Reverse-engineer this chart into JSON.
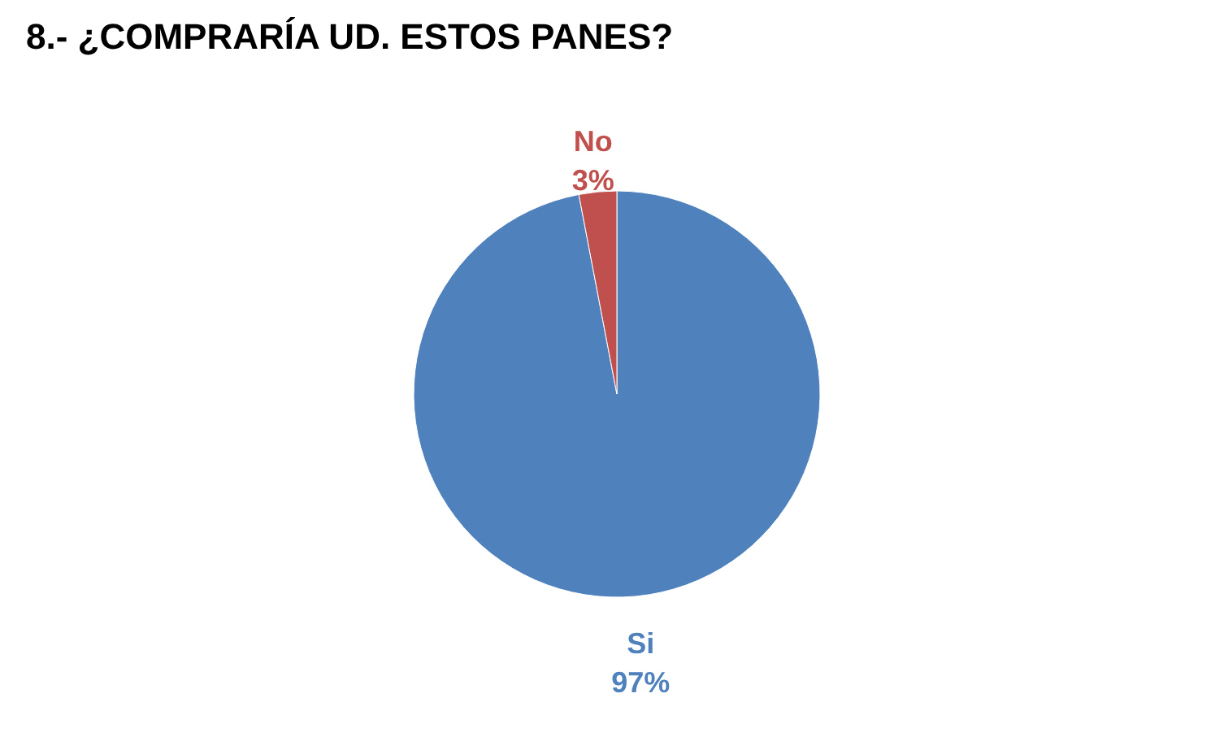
{
  "chart_data": {
    "type": "pie",
    "title": "8.- ¿COMPRARÍA UD. ESTOS PANES?",
    "categories": [
      "Si",
      "No"
    ],
    "values": [
      97,
      3
    ],
    "colors": [
      "#4f81bd",
      "#c0504d"
    ],
    "value_labels": [
      "97%",
      "3%"
    ],
    "legend": false
  }
}
